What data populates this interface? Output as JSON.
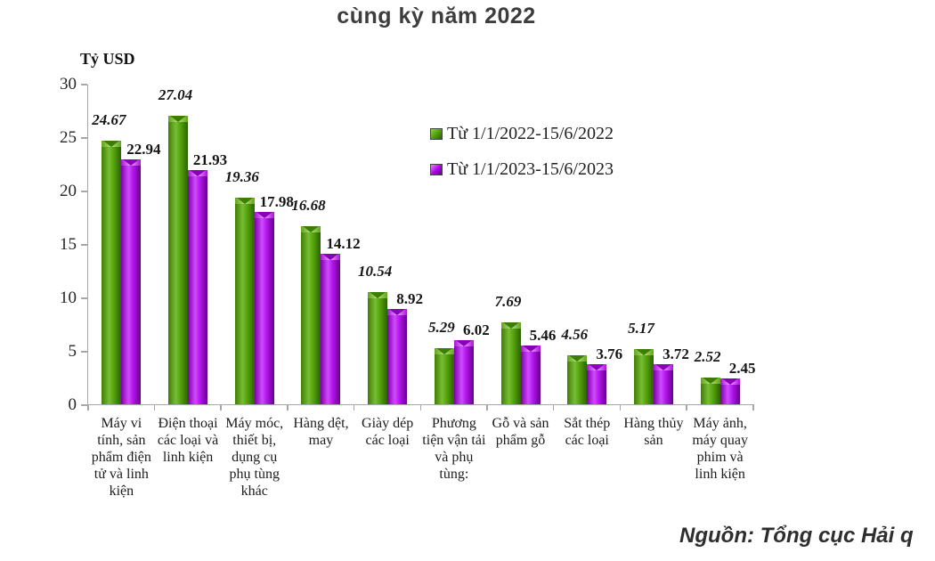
{
  "title": "cùng kỳ năm 2022",
  "y_axis_unit_label": "Tỷ USD",
  "source_note": "Nguồn: Tổng cục Hải q",
  "colors": {
    "series1_green": "#4e9a06",
    "series2_purple": "#aa00e0",
    "axis_gray": "#a8a8a8"
  },
  "chart_data": {
    "type": "bar",
    "title": "cùng kỳ năm 2022",
    "ylabel": "Tỷ USD",
    "ylim": [
      0,
      30
    ],
    "yticks": [
      0,
      5,
      10,
      15,
      20,
      25,
      30
    ],
    "grid": false,
    "legend_position": "inside-upper-right",
    "categories": [
      "Máy vi tính, sản phẩm điện tử và linh kiện",
      "Điện thoại các loại và linh kiện",
      "Máy móc, thiết bị, dụng cụ phụ tùng khác",
      "Hàng dệt, may",
      "Giày dép các loại",
      "Phương tiện vận tải và phụ tùng:",
      "Gỗ và sản phẩm gỗ",
      "Sắt thép các loại",
      "Hàng thủy sản",
      "Máy ảnh, máy quay phim và linh kiện"
    ],
    "series": [
      {
        "name": "Từ 1/1/2022-15/6/2022",
        "values": [
          24.67,
          27.04,
          19.36,
          16.68,
          10.54,
          5.29,
          7.69,
          4.56,
          5.17,
          2.52
        ]
      },
      {
        "name": "Từ 1/1/2023-15/6/2023",
        "values": [
          22.94,
          21.93,
          17.98,
          14.12,
          8.92,
          6.02,
          5.46,
          3.76,
          3.72,
          2.45
        ]
      }
    ]
  }
}
